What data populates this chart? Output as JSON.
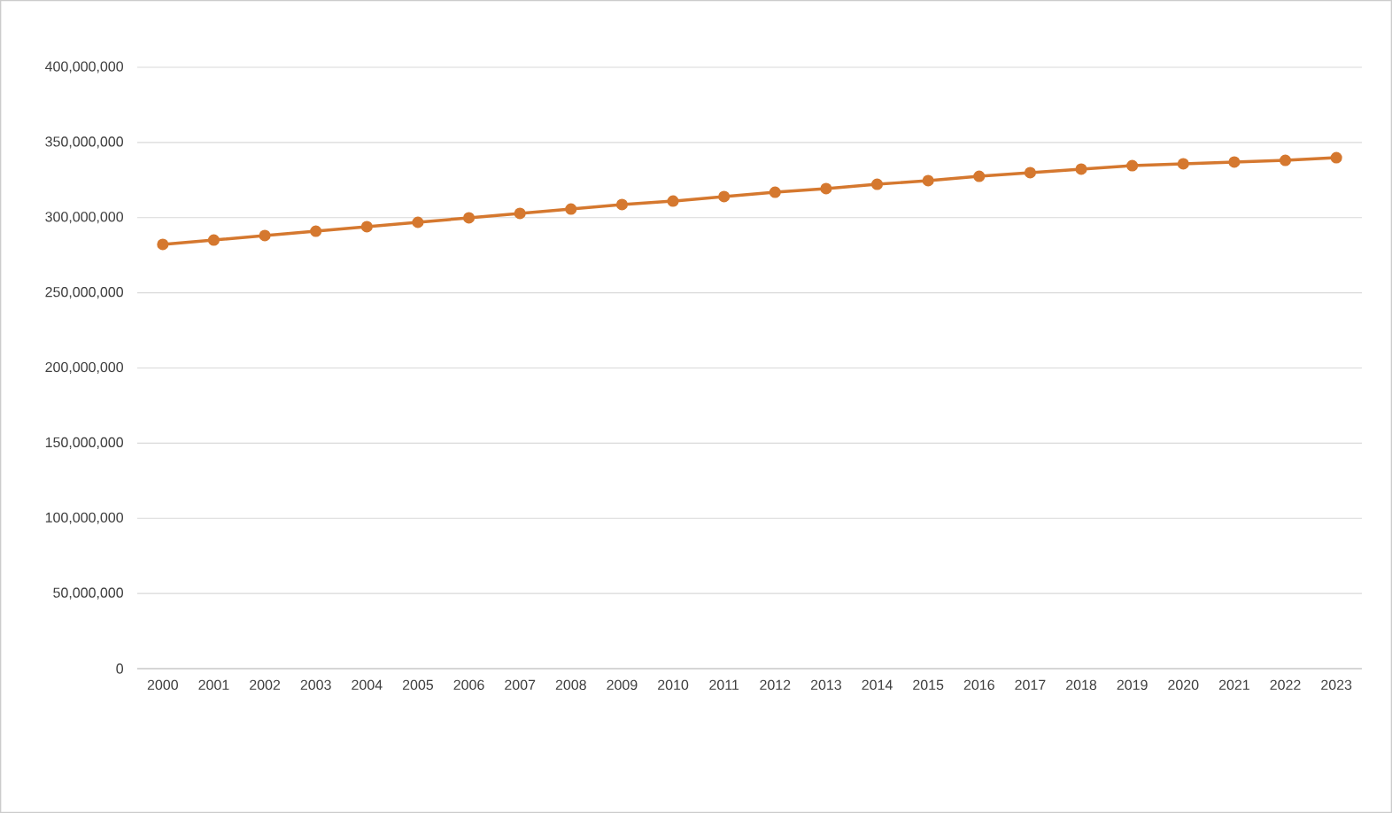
{
  "chart_data": {
    "type": "line",
    "categories": [
      "2000",
      "2001",
      "2002",
      "2003",
      "2004",
      "2005",
      "2006",
      "2007",
      "2008",
      "2009",
      "2010",
      "2011",
      "2012",
      "2013",
      "2014",
      "2015",
      "2016",
      "2017",
      "2018",
      "2019",
      "2020",
      "2021",
      "2022",
      "2023"
    ],
    "series": [
      {
        "color": "#d5782f",
        "values": [
          282200000,
          285100000,
          288100000,
          291000000,
          294000000,
          296900000,
          299900000,
          302800000,
          305700000,
          308700000,
          311000000,
          314000000,
          316900000,
          319300000,
          322200000,
          324600000,
          327500000,
          329900000,
          332300000,
          334600000,
          335800000,
          337000000,
          338100000,
          339900000
        ]
      }
    ],
    "ylim": [
      0,
      400000000
    ],
    "yticks": [
      {
        "value": 0,
        "label": "0"
      },
      {
        "value": 50000000,
        "label": "50,000,000"
      },
      {
        "value": 100000000,
        "label": "100,000,000"
      },
      {
        "value": 150000000,
        "label": "150,000,000"
      },
      {
        "value": 200000000,
        "label": "200,000,000"
      },
      {
        "value": 250000000,
        "label": "250,000,000"
      },
      {
        "value": 300000000,
        "label": "300,000,000"
      },
      {
        "value": 350000000,
        "label": "350,000,000"
      },
      {
        "value": 400000000,
        "label": "400,000,000"
      }
    ],
    "grid": "y",
    "marker": "circle",
    "line_style": "solid"
  }
}
